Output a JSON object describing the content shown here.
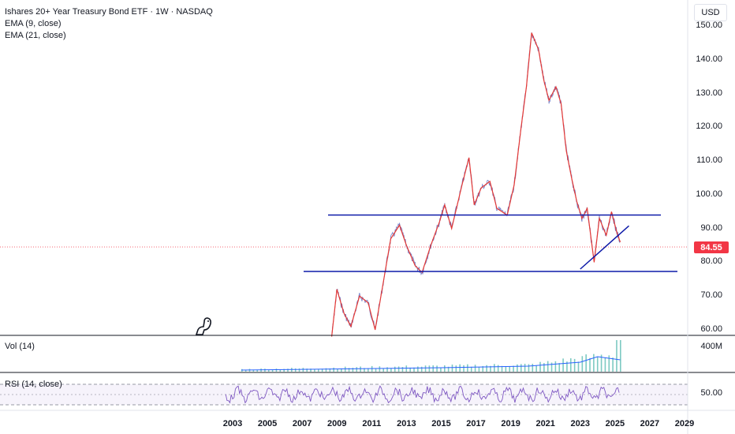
{
  "header": {
    "title": "Ishares 20+ Year Treasury Bond ETF · 1W · NASDAQ",
    "indicators": [
      "EMA (9, close)",
      "EMA (21, close)"
    ]
  },
  "toolbar": {
    "currency": "USD"
  },
  "price_axis": {
    "labels": [
      "150.00",
      "140.00",
      "130.00",
      "120.00",
      "110.00",
      "100.00",
      "90.00",
      "80.00",
      "70.00",
      "60.00"
    ]
  },
  "last_price": "84.55",
  "volume_pane": {
    "label": "Vol (14)",
    "axis_label": "400M"
  },
  "rsi_pane": {
    "label": "RSI (14, close)",
    "axis_label": "50.00"
  },
  "time_axis": {
    "labels": [
      "2003",
      "2005",
      "2007",
      "2009",
      "2011",
      "2013",
      "2015",
      "2017",
      "2019",
      "2021",
      "2023",
      "2025",
      "2027",
      "2029"
    ]
  },
  "colors": {
    "price_line": "#3f51b5",
    "ema_fast": "#e53935",
    "trendline": "#0d1aa8",
    "volume": "#26a69a",
    "rsi": "#7e57c2",
    "last_price": "#f23645"
  },
  "chart_data": {
    "type": "line",
    "title": "Ishares 20+ Year Treasury Bond ETF · 1W · NASDAQ",
    "series": [
      {
        "name": "",
        "x": [
          2008.7,
          2009.0,
          2009.4,
          2009.8,
          2010.3,
          2010.8,
          2011.2,
          2011.7,
          2012.1,
          2012.6,
          2013.0,
          2013.5,
          2013.9,
          2014.4,
          2014.9,
          2015.2,
          2015.6,
          2016.2,
          2016.6,
          2016.9,
          2017.3,
          2017.8,
          2018.2,
          2018.8,
          2019.2,
          2019.6,
          2019.9,
          2020.2,
          2020.6,
          2020.9,
          2021.2,
          2021.6,
          2021.9,
          2022.2,
          2022.5,
          2022.8,
          2023.1,
          2023.4,
          2023.8,
          2024.1,
          2024.5,
          2024.8,
          2025.1,
          2025.3
        ],
        "y": [
          58,
          72,
          65,
          61,
          70,
          68,
          60,
          75,
          87,
          91,
          85,
          79,
          77,
          85,
          92,
          97,
          90,
          103,
          111,
          97,
          102,
          104,
          96,
          94,
          103,
          120,
          132,
          148,
          143,
          134,
          128,
          132,
          127,
          113,
          105,
          98,
          93,
          96,
          80,
          93,
          88,
          95,
          89,
          86
        ]
      }
    ],
    "ylim": [
      58,
      155
    ],
    "xlim": [
      2002.3,
      2029.0
    ],
    "grid": false
  }
}
